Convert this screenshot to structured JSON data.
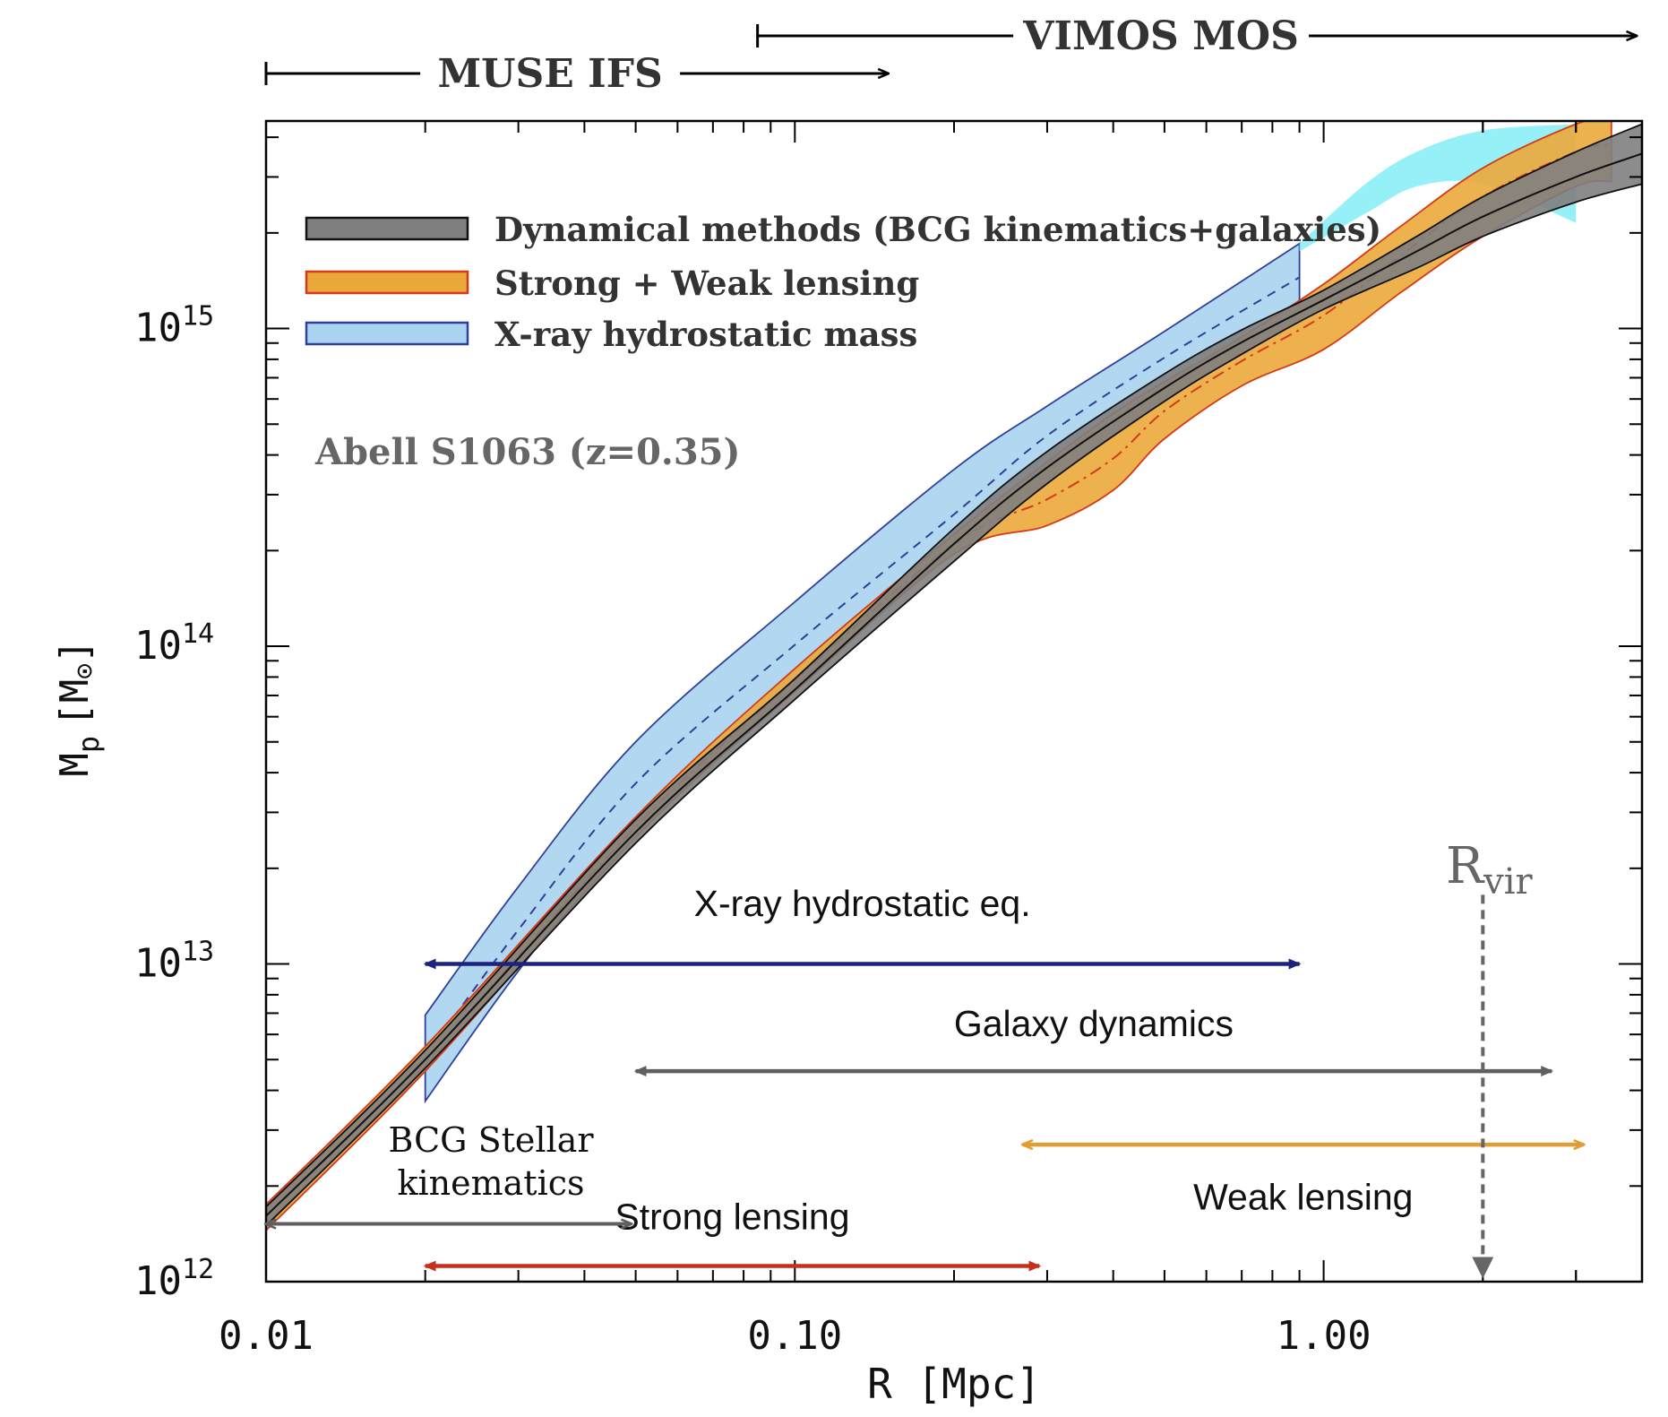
{
  "chart_data": {
    "type": "area",
    "title": "Abell S1063 (z=0.35)",
    "xlabel": "R [Mpc]",
    "ylabel_main": "M",
    "ylabel_sub": "p",
    "ylabel_unit_open": "[M",
    "ylabel_unit_sun": "⊙",
    "ylabel_unit_close": "]",
    "xscale": "log",
    "yscale": "log",
    "xlim": [
      0.01,
      4.0
    ],
    "ylim": [
      1000000000000.0,
      4500000000000000.0
    ],
    "x_ticks": [
      {
        "value": 0.01,
        "label": "0.01"
      },
      {
        "value": 0.1,
        "label": "0.10"
      },
      {
        "value": 1.0,
        "label": "1.00"
      }
    ],
    "y_ticks": [
      {
        "value": 1000000000000.0,
        "base": "10",
        "exp": "12"
      },
      {
        "value": 10000000000000.0,
        "base": "10",
        "exp": "13"
      },
      {
        "value": 100000000000000.0,
        "base": "10",
        "exp": "14"
      },
      {
        "value": 1000000000000000.0,
        "base": "10",
        "exp": "15"
      }
    ],
    "legend": [
      {
        "label": "Dynamical methods (BCG kinematics+galaxies)",
        "fill": "#7f7f7f",
        "edge": "#111111"
      },
      {
        "label": "Strong + Weak lensing",
        "fill": "#eba83a",
        "edge": "#d23a1a"
      },
      {
        "label": "X-ray hydrostatic mass",
        "fill": "#a9d3ef",
        "edge": "#2f3f9a"
      }
    ],
    "legend_position": "top-left",
    "series": [
      {
        "name": "X-ray hydrostatic mass",
        "x": [
          0.02,
          0.03,
          0.05,
          0.1,
          0.2,
          0.3,
          0.5,
          0.9
        ],
        "lower": [
          3700000000000.0,
          9500000000000.0,
          27000000000000.0,
          75000000000000.0,
          200000000000000.0,
          370000000000000.0,
          660000000000000.0,
          1150000000000000.0
        ],
        "upper": [
          6900000000000.0,
          17500000000000.0,
          50000000000000.0,
          138000000000000.0,
          360000000000000.0,
          570000000000000.0,
          980000000000000.0,
          1850000000000000.0
        ],
        "median": [
          5100000000000.0,
          12800000000000.0,
          37000000000000.0,
          101000000000000.0,
          260000000000000.0,
          460000000000000.0,
          810000000000000.0,
          1450000000000000.0
        ],
        "fill": "#a9d3ef",
        "edge": "#2f3f9a",
        "median_color": "#2f3f9a",
        "median_dash": "10,8"
      },
      {
        "name": "X-ray hydrostatic mass (extension)",
        "x": [
          0.9,
          1.2,
          1.5,
          2.0,
          3.0
        ],
        "lower": [
          1750000000000000.0,
          2300000000000000.0,
          2800000000000000.0,
          2850000000000000.0,
          2150000000000000.0
        ],
        "upper": [
          1850000000000000.0,
          2850000000000000.0,
          3600000000000000.0,
          4200000000000000.0,
          4400000000000000.0
        ],
        "fill": "#82eef6",
        "edge": "none"
      },
      {
        "name": "Strong + Weak lensing",
        "x": [
          0.01,
          0.02,
          0.05,
          0.1,
          0.2,
          0.3,
          0.4,
          0.5,
          0.7,
          1.0,
          1.4,
          2.0,
          3.0,
          3.5
        ],
        "lower": [
          1450000000000.0,
          4600000000000.0,
          25000000000000.0,
          72000000000000.0,
          195000000000000.0,
          240000000000000.0,
          310000000000000.0,
          450000000000000.0,
          660000000000000.0,
          860000000000000.0,
          1300000000000000.0,
          1950000000000000.0,
          2800000000000000.0,
          2900000000000000.0
        ],
        "upper": [
          1750000000000.0,
          5500000000000.0,
          29000000000000.0,
          85000000000000.0,
          225000000000000.0,
          380000000000000.0,
          540000000000000.0,
          680000000000000.0,
          940000000000000.0,
          1380000000000000.0,
          2100000000000000.0,
          3200000000000000.0,
          4400000000000000.0,
          4600000000000000.0
        ],
        "median": [
          1600000000000.0,
          5000000000000.0,
          27000000000000.0,
          78000000000000.0,
          210000000000000.0,
          290000000000000.0,
          390000000000000.0,
          550000000000000.0,
          790000000000000.0,
          1100000000000000.0,
          1700000000000000.0,
          2600000000000000.0,
          3600000000000000.0,
          3800000000000000.0
        ],
        "fill": "#eba83a",
        "edge": "#d23a1a",
        "median_color": "#d23a1a",
        "median_dash": "14,6,3,6"
      },
      {
        "name": "Dynamical methods (BCG kinematics+galaxies)",
        "x": [
          0.01,
          0.02,
          0.05,
          0.1,
          0.2,
          0.3,
          0.5,
          0.7,
          1.0,
          1.5,
          2.0,
          3.0,
          4.0
        ],
        "lower": [
          1500000000000.0,
          4700000000000.0,
          24000000000000.0,
          68000000000000.0,
          185000000000000.0,
          325000000000000.0,
          590000000000000.0,
          830000000000000.0,
          1150000000000000.0,
          1550000000000000.0,
          1950000000000000.0,
          2500000000000000.0,
          2850000000000000.0
        ],
        "upper": [
          1720000000000.0,
          5350000000000.0,
          28500000000000.0,
          79000000000000.0,
          235000000000000.0,
          410000000000000.0,
          720000000000000.0,
          990000000000000.0,
          1320000000000000.0,
          1950000000000000.0,
          2600000000000000.0,
          3600000000000000.0,
          4400000000000000.0
        ],
        "median": [
          1610000000000.0,
          5000000000000.0,
          26000000000000.0,
          73000000000000.0,
          210000000000000.0,
          365000000000000.0,
          650000000000000.0,
          905000000000000.0,
          1230000000000000.0,
          1750000000000000.0,
          2250000000000000.0,
          3000000000000000.0,
          3550000000000000.0
        ],
        "fill": "#7f7f7f",
        "edge": "#111111",
        "median_color": "#111111",
        "median_dash": ""
      }
    ],
    "top_ranges": [
      {
        "label": "MUSE IFS",
        "x_start": 0.01,
        "x_end": 0.15,
        "color": "#000000"
      },
      {
        "label": "VIMOS MOS",
        "x_start": 0.085,
        "x_end": 3.9,
        "color": "#000000"
      }
    ],
    "annotations": [
      {
        "label": "X-ray hydrostatic eq.",
        "x_start": 0.02,
        "x_end": 0.9,
        "y": 10000000000000.0,
        "label_y": 15500000000000.0,
        "color": "#1a237e"
      },
      {
        "label": "Galaxy dynamics",
        "x_start": 0.05,
        "x_end": 2.7,
        "y": 4600000000000.0,
        "label_y": 6500000000000.0,
        "color": "#5f5f5f"
      },
      {
        "label": "Weak lensing",
        "x_start": 0.27,
        "x_end": 3.1,
        "y": 2700000000000.0,
        "label_y": 1850000000000.0,
        "color": "#e39b35"
      },
      {
        "label": "Strong lensing",
        "x_start": 0.02,
        "x_end": 0.29,
        "y": 1120000000000.0,
        "label_y": 1600000000000.0,
        "color": "#c62f1b"
      },
      {
        "label": "BCG Stellar kinematics",
        "x_start": 0.01,
        "x_end": 0.049,
        "y": 1520000000000.0,
        "color": "#5f5f5f",
        "lines": [
          "BCG Stellar",
          "kinematics"
        ]
      }
    ],
    "virial_radius": {
      "label_main": "R",
      "label_sub": "vir",
      "x": 2.0,
      "y_from": 16500000000000.0,
      "y_to": 1050000000000.0,
      "color": "#666666"
    }
  }
}
